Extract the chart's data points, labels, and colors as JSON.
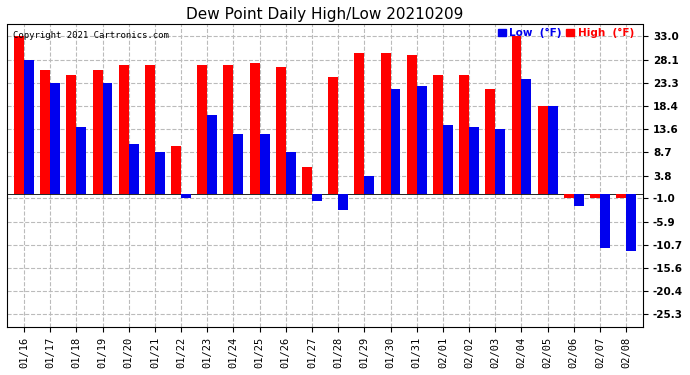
{
  "title": "Dew Point Daily High/Low 20210209",
  "copyright": "Copyright 2021 Cartronics.com",
  "dates": [
    "01/16",
    "01/17",
    "01/18",
    "01/19",
    "01/20",
    "01/21",
    "01/22",
    "01/23",
    "01/24",
    "01/25",
    "01/26",
    "01/27",
    "01/28",
    "01/29",
    "01/30",
    "01/31",
    "02/01",
    "02/02",
    "02/03",
    "02/04",
    "02/05",
    "02/06",
    "02/07",
    "02/08"
  ],
  "high": [
    33.0,
    26.0,
    25.0,
    26.0,
    27.0,
    27.0,
    10.0,
    27.0,
    27.0,
    27.5,
    26.5,
    5.5,
    24.5,
    29.5,
    29.5,
    29.0,
    25.0,
    25.0,
    22.0,
    33.0,
    18.4,
    -1.0,
    -1.0,
    -1.0
  ],
  "low": [
    28.1,
    23.3,
    14.0,
    23.3,
    10.5,
    8.7,
    -1.0,
    16.5,
    12.5,
    12.5,
    8.7,
    -1.5,
    -3.5,
    3.8,
    22.0,
    22.5,
    14.5,
    14.0,
    13.6,
    24.0,
    18.4,
    -2.5,
    -11.5,
    -12.0
  ],
  "yticks": [
    33.0,
    28.1,
    23.3,
    18.4,
    13.6,
    8.7,
    3.8,
    -1.0,
    -5.9,
    -10.7,
    -15.6,
    -20.4,
    -25.3
  ],
  "ymin": -28.0,
  "ymax": 35.5,
  "bar_width": 0.38,
  "high_color": "#FF0000",
  "low_color": "#0000EE",
  "bg_color": "#FFFFFF",
  "grid_color": "#BBBBBB",
  "title_fontsize": 11,
  "tick_fontsize": 7.5,
  "legend_low_label": "Low  (°F)",
  "legend_high_label": "High  (°F)"
}
